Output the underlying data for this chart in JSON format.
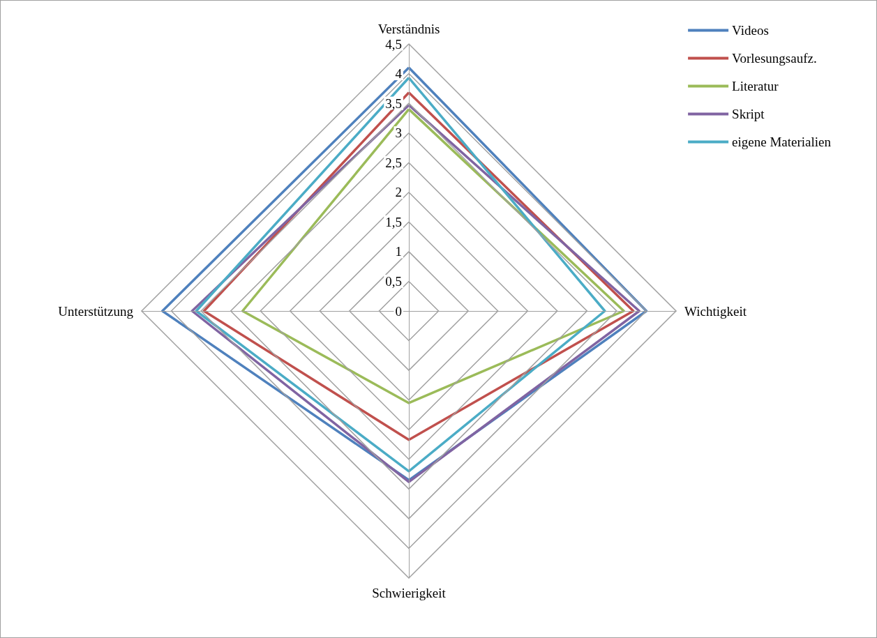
{
  "chart_data": {
    "type": "radar",
    "categories": [
      "Verständnis",
      "Wichtigkeit",
      "Schwierigkeit",
      "Unterstützung"
    ],
    "series": [
      {
        "name": "Videos",
        "color": "#4f81bd",
        "values": [
          4.1,
          4.0,
          2.85,
          4.15
        ]
      },
      {
        "name": "Vorlesungsaufz.",
        "color": "#c0504d",
        "values": [
          3.68,
          3.78,
          2.17,
          3.45
        ]
      },
      {
        "name": "Literatur",
        "color": "#9bbb59",
        "values": [
          3.4,
          3.62,
          1.55,
          2.8
        ]
      },
      {
        "name": "Skript",
        "color": "#8064a2",
        "values": [
          3.47,
          3.88,
          2.88,
          3.65
        ]
      },
      {
        "name": "eigene Materialien",
        "color": "#4bacc6",
        "values": [
          3.93,
          3.3,
          2.7,
          3.58
        ]
      }
    ],
    "ylim": [
      0,
      4.5
    ],
    "yticks": [
      0,
      {
        "value": 0.5,
        "label": "0,5"
      },
      1,
      {
        "value": 1.5,
        "label": "1,5"
      },
      2,
      {
        "value": 2.5,
        "label": "2,5"
      },
      3,
      {
        "value": 3.5,
        "label": "3,5"
      },
      4,
      {
        "value": 4.5,
        "label": "4,5"
      }
    ],
    "legend": "top right",
    "marker": "none",
    "line_style": "solid",
    "grid": true
  }
}
